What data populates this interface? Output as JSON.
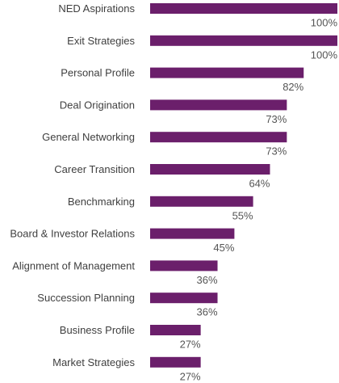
{
  "chart_data": {
    "type": "bar",
    "orientation": "horizontal",
    "categories": [
      "NED Aspirations",
      "Exit Strategies",
      "Personal Profile",
      "Deal Origination",
      "General Networking",
      "Career Transition",
      "Benchmarking",
      "Board & Investor Relations",
      "Alignment of Management",
      "Succession Planning",
      "Business Profile",
      "Market Strategies"
    ],
    "values": [
      100,
      100,
      82,
      73,
      73,
      64,
      55,
      45,
      36,
      36,
      27,
      27
    ],
    "value_labels": [
      "100%",
      "100%",
      "82%",
      "73%",
      "73%",
      "64%",
      "55%",
      "45%",
      "36%",
      "36%",
      "27%",
      "27%"
    ],
    "xlim": [
      0,
      100
    ],
    "title": "",
    "xlabel": "",
    "ylabel": "",
    "grid": false,
    "legend": "none",
    "bar_color": "#6b1f6b"
  }
}
